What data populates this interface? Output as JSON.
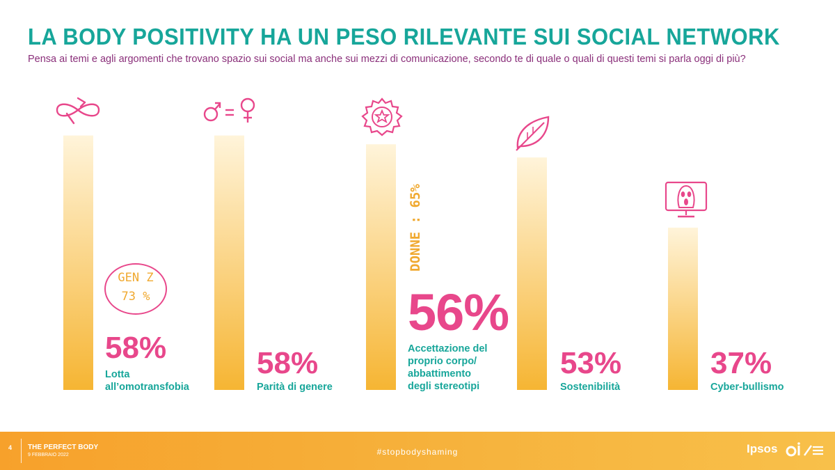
{
  "title": "LA BODY POSITIVITY HA UN PESO RILEVANTE SUI SOCIAL NETWORK",
  "subtitle": "Pensa ai temi e agli argomenti che trovano spazio sui social ma anche sui mezzi di comunicazione, secondo te di quale o quali di questi temi si parla oggi di più?",
  "chart_data": {
    "type": "bar",
    "categories": [
      "Lotta all’omotransfobia",
      "Parità di genere",
      "Accettazione del proprio corpo/ abbattimento degli stereotipi",
      "Sostenibilità",
      "Cyber-bullismo"
    ],
    "category_lines": [
      [
        "Lotta",
        "all’omotransfobia"
      ],
      [
        "Parità di genere"
      ],
      [
        "Accettazione del",
        "proprio corpo/",
        "abbattimento",
        "degli stereotipi"
      ],
      [
        "Sostenibilità"
      ],
      [
        "Cyber-bullismo"
      ]
    ],
    "values": [
      58,
      58,
      56,
      53,
      37
    ],
    "value_labels": [
      "58%",
      "58%",
      "56%",
      "53%",
      "37%"
    ],
    "highlight_index": 2,
    "ylim": [
      0,
      100
    ],
    "icons": [
      "infinity-icon",
      "gender-equality-icon",
      "star-badge-icon",
      "leaf-icon",
      "cyberbullying-monitor-icon"
    ],
    "annotations": {
      "gen_z_line1": "GEN Z",
      "gen_z_line2": "73 %",
      "donne": "DONNE : 65%"
    },
    "colors": {
      "bar_top": "#fff3d6",
      "bar_bottom": "#f6b533",
      "value": "#e8478b",
      "category": "#17a69a",
      "icon": "#e8478b",
      "annotation": "#f0a930"
    }
  },
  "footer": {
    "page_number": "4",
    "title": "THE PERFECT BODY",
    "date": "9 FEBBRAIO 2022",
    "hashtag": "#stopbodyshaming",
    "brand": "Ipsos"
  },
  "colors": {
    "title": "#17a69a",
    "subtitle": "#8a2f7a",
    "footer_orange": "#f7a12b"
  }
}
